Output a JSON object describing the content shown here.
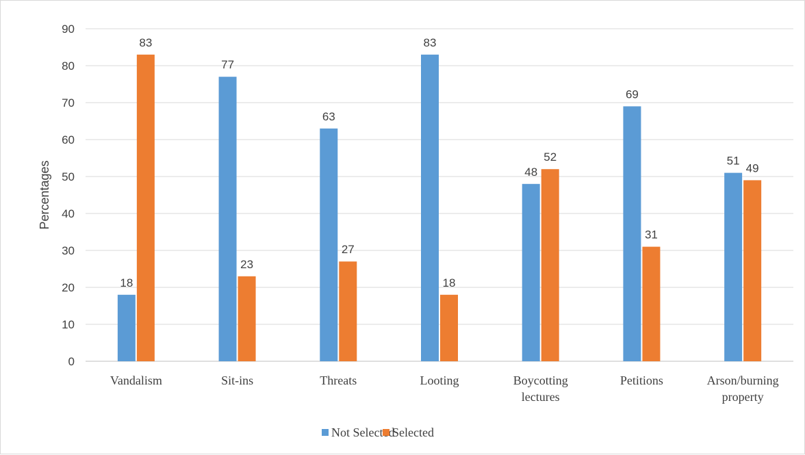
{
  "chart_data": {
    "type": "bar",
    "title": "",
    "xlabel": "",
    "ylabel": "Percentages",
    "ylim": [
      0,
      90
    ],
    "yticks": [
      0,
      10,
      20,
      30,
      40,
      50,
      60,
      70,
      80,
      90
    ],
    "grid": true,
    "legend_position": "bottom",
    "categories": [
      [
        "Vandalism"
      ],
      [
        "Sit-ins"
      ],
      [
        "Threats"
      ],
      [
        "Looting"
      ],
      [
        "Boycotting",
        "lectures"
      ],
      [
        "Petitions"
      ],
      [
        "Arson/burning",
        "property"
      ]
    ],
    "series": [
      {
        "name": "Not Selected",
        "color": "#5b9bd5",
        "values": [
          18,
          77,
          63,
          83,
          48,
          69,
          51
        ]
      },
      {
        "name": "Selected",
        "color": "#ed7d31",
        "values": [
          83,
          23,
          27,
          18,
          52,
          31,
          49
        ]
      }
    ]
  }
}
